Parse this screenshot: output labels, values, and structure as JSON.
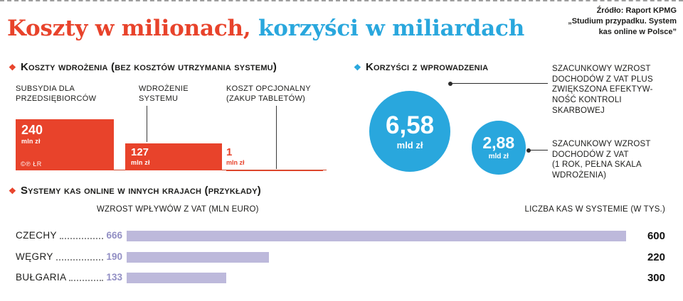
{
  "page": {
    "title_red": "Koszty w milionach,",
    "title_blue": " korzyści w miliardach",
    "source": "Źródło: Raport KPMG\n„Studium przypadku. System\nkas online w Polsce”"
  },
  "icons": {
    "diamond": "❖"
  },
  "colors": {
    "red": "#e8432b",
    "blue": "#29a7dd",
    "lavender": "#bdb9db",
    "periwinkle": "#928fc4",
    "ink": "#1d1d1b"
  },
  "chart_data": [
    {
      "type": "bar",
      "title": "Koszty wdrożenia (bez kosztów utrzymania systemu)",
      "unit": "mln zł",
      "bars": [
        {
          "category": "SUBSYDIA DLA PRZEDSIĘBIORCÓW",
          "value": 240,
          "display": "240",
          "unit": "mln zł"
        },
        {
          "category": "WDROŻENIE SYSTEMU",
          "value": 127,
          "display": "127",
          "unit": "mln zł"
        },
        {
          "category": "KOSZT OPCJONALNY (ZAKUP TABLETÓW)",
          "value": 1,
          "display": "1",
          "unit": "mln zł"
        }
      ],
      "watermark": "©℗ ŁR"
    },
    {
      "type": "bubble",
      "title": "Korzyści z wprowadzenia",
      "unit": "mld zł",
      "bubbles": [
        {
          "value": 6.58,
          "display": "6,58",
          "unit": "mld zł",
          "annotation": "SZACUNKOWY WZROST\nDOCHODÓW Z VAT PLUS\nZWIĘKSZONA EFEKTYW-\nNOŚĆ KONTROLI\nSKARBOWEJ"
        },
        {
          "value": 2.88,
          "display": "2,88",
          "unit": "mld zł",
          "annotation": "SZACUNKOWY WZROST\nDOCHODÓW Z VAT\n(1 ROK, PEŁNA SKALA\nWDROŻENIA)"
        }
      ]
    },
    {
      "type": "bar",
      "title": "Systemy kas online w innych krajach (przykłady)",
      "columns": {
        "left": "WZROST WPŁYWÓW Z VAT (MLN EURO)",
        "right": "LICZBA KAS W SYSTEMIE (W TYS.)"
      },
      "rows": [
        {
          "country": "CZECHY",
          "vat_mln_euro": 666,
          "kas_tys": 600
        },
        {
          "country": "WĘGRY",
          "vat_mln_euro": 190,
          "kas_tys": 220
        },
        {
          "country": "BUŁGARIA",
          "vat_mln_euro": 133,
          "kas_tys": 300
        }
      ]
    }
  ]
}
